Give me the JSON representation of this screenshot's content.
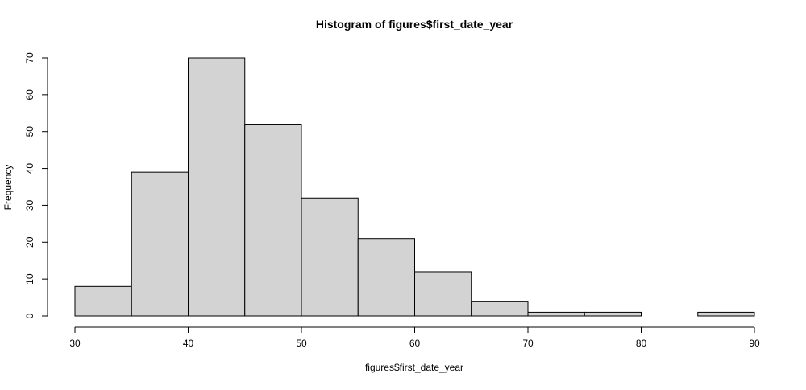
{
  "chart_data": {
    "type": "bar",
    "title": "Histogram of figures$first_date_year",
    "xlabel": "figures$first_date_year",
    "ylabel": "Frequency",
    "bins": [
      {
        "x0": 30,
        "x1": 35,
        "count": 8
      },
      {
        "x0": 35,
        "x1": 40,
        "count": 39
      },
      {
        "x0": 40,
        "x1": 45,
        "count": 70
      },
      {
        "x0": 45,
        "x1": 50,
        "count": 52
      },
      {
        "x0": 50,
        "x1": 55,
        "count": 32
      },
      {
        "x0": 55,
        "x1": 60,
        "count": 21
      },
      {
        "x0": 60,
        "x1": 65,
        "count": 12
      },
      {
        "x0": 65,
        "x1": 70,
        "count": 4
      },
      {
        "x0": 70,
        "x1": 75,
        "count": 1
      },
      {
        "x0": 75,
        "x1": 80,
        "count": 1
      },
      {
        "x0": 80,
        "x1": 85,
        "count": 0
      },
      {
        "x0": 85,
        "x1": 90,
        "count": 1
      }
    ],
    "xlim": [
      30,
      90
    ],
    "ylim": [
      0,
      70
    ],
    "x_ticks": [
      30,
      40,
      50,
      60,
      70,
      80,
      90
    ],
    "y_ticks": [
      0,
      10,
      20,
      30,
      40,
      50,
      60,
      70
    ],
    "grid": false,
    "bar_fill": "#d3d3d3",
    "bar_stroke": "#000000"
  }
}
